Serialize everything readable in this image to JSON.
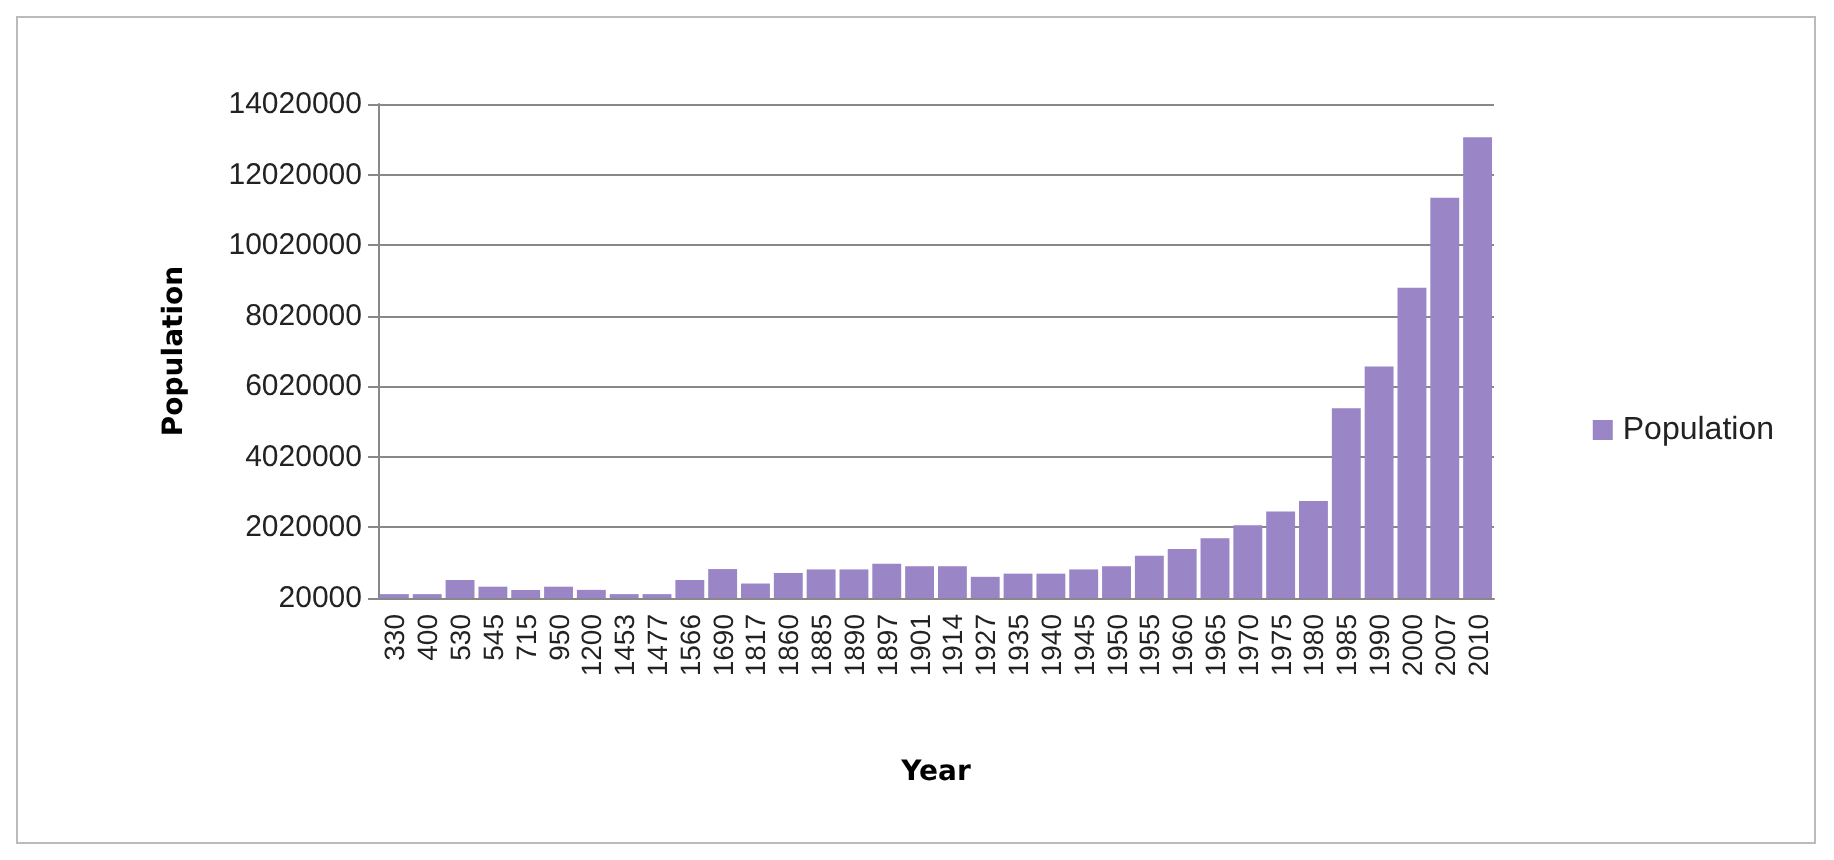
{
  "chart_data": {
    "type": "bar",
    "xlabel": "Year",
    "ylabel": "Population",
    "categories": [
      "330",
      "400",
      "530",
      "545",
      "715",
      "950",
      "1200",
      "1453",
      "1477",
      "1566",
      "1690",
      "1817",
      "1860",
      "1885",
      "1890",
      "1897",
      "1901",
      "1914",
      "1927",
      "1935",
      "1940",
      "1945",
      "1950",
      "1955",
      "1960",
      "1965",
      "1970",
      "1975",
      "1980",
      "1985",
      "1990",
      "2000",
      "2007",
      "2010"
    ],
    "series": [
      {
        "name": "Population",
        "color": "#9a85c6",
        "values": [
          130000,
          130000,
          530000,
          340000,
          250000,
          340000,
          250000,
          130000,
          130000,
          530000,
          840000,
          430000,
          730000,
          830000,
          830000,
          990000,
          920000,
          920000,
          620000,
          710000,
          710000,
          830000,
          920000,
          1220000,
          1410000,
          1710000,
          2080000,
          2470000,
          2770000,
          5400000,
          6580000,
          8810000,
          11360000,
          13080000
        ]
      }
    ],
    "ylim": [
      20000,
      14020000
    ],
    "yticks": [
      20000,
      2020000,
      4020000,
      6020000,
      8020000,
      10020000,
      12020000,
      14020000
    ],
    "grid": "y",
    "legend": "right"
  }
}
